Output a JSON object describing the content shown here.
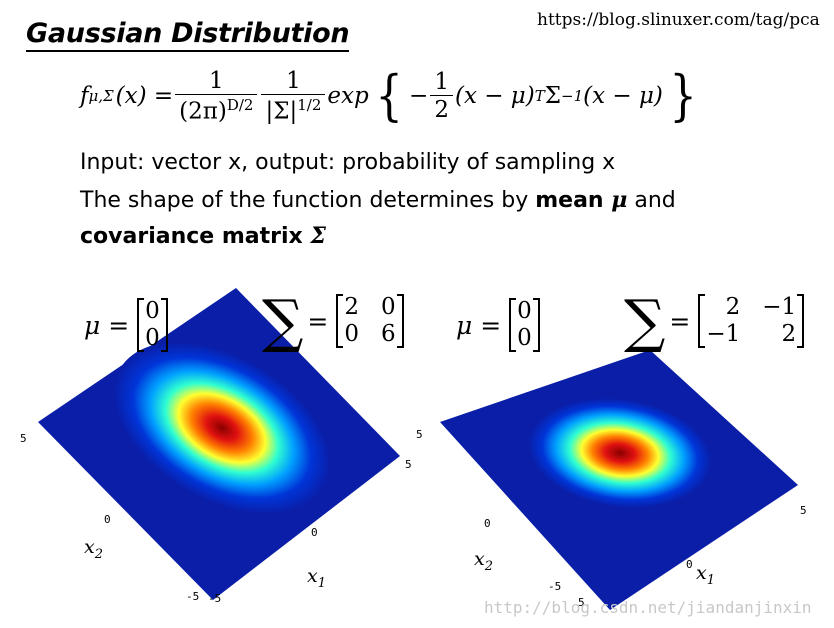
{
  "title": "Gaussian Distribution",
  "source_url": "https://blog.slinuxer.com/tag/pca",
  "formula": {
    "lhs_f": "f",
    "lhs_sub": "μ,Σ",
    "lhs_arg": "(x) =",
    "frac1_num": "1",
    "frac1_den_base": "(2π)",
    "frac1_den_exp": "D/2",
    "frac2_num": "1",
    "frac2_den_base": "|Σ|",
    "frac2_den_exp": "1/2",
    "exp_word": "exp",
    "brace_open": "{",
    "minus": "−",
    "frac3_num": "1",
    "frac3_den": "2",
    "term1": "(x − μ)",
    "term1_sup": "T",
    "sigma_inv": "Σ",
    "sigma_inv_sup": "−1",
    "term2": "(x − μ)",
    "brace_close": "}"
  },
  "lines": {
    "line1": "Input: vector x, output: probability of sampling x",
    "line2_pre": "The shape of the function determines by ",
    "line2_bold": "mean ",
    "line2_bold_mu": "μ",
    "line2_post": " and",
    "line3_bold": "covariance matrix ",
    "line3_bold_sigma": "Σ"
  },
  "left_plot": {
    "mu_label": "μ =",
    "mu": [
      "0",
      "0"
    ],
    "sigma_symbol": "∑",
    "eq": "=",
    "cov": [
      "2",
      "0",
      "0",
      "6"
    ],
    "ticks": {
      "tl5": "5",
      "r5": "5",
      "mid0_left": "0",
      "mid0_right": "0",
      "b5a": "-5",
      "b5b": "-5"
    },
    "xlabel1": "x",
    "xlabel1_sub": "1",
    "xlabel2": "x",
    "xlabel2_sub": "2"
  },
  "right_plot": {
    "mu_label": "μ =",
    "mu": [
      "0",
      "0"
    ],
    "sigma_symbol": "∑",
    "eq": "=",
    "cov": [
      "2",
      "−1",
      "−1",
      "2"
    ],
    "ticks": {
      "tl5": "5",
      "r5": "5",
      "mid0_left": "0",
      "mid0_right": "0",
      "b5a": "-5",
      "b5b": "5"
    },
    "xlabel1": "x",
    "xlabel1_sub": "1",
    "xlabel2": "x",
    "xlabel2_sub": "2"
  },
  "watermark": "http://blog.csdn.net/jiandanjinxin",
  "colors": {
    "surface_low": "#0a1ea8",
    "surface_peak": "#a00000"
  }
}
